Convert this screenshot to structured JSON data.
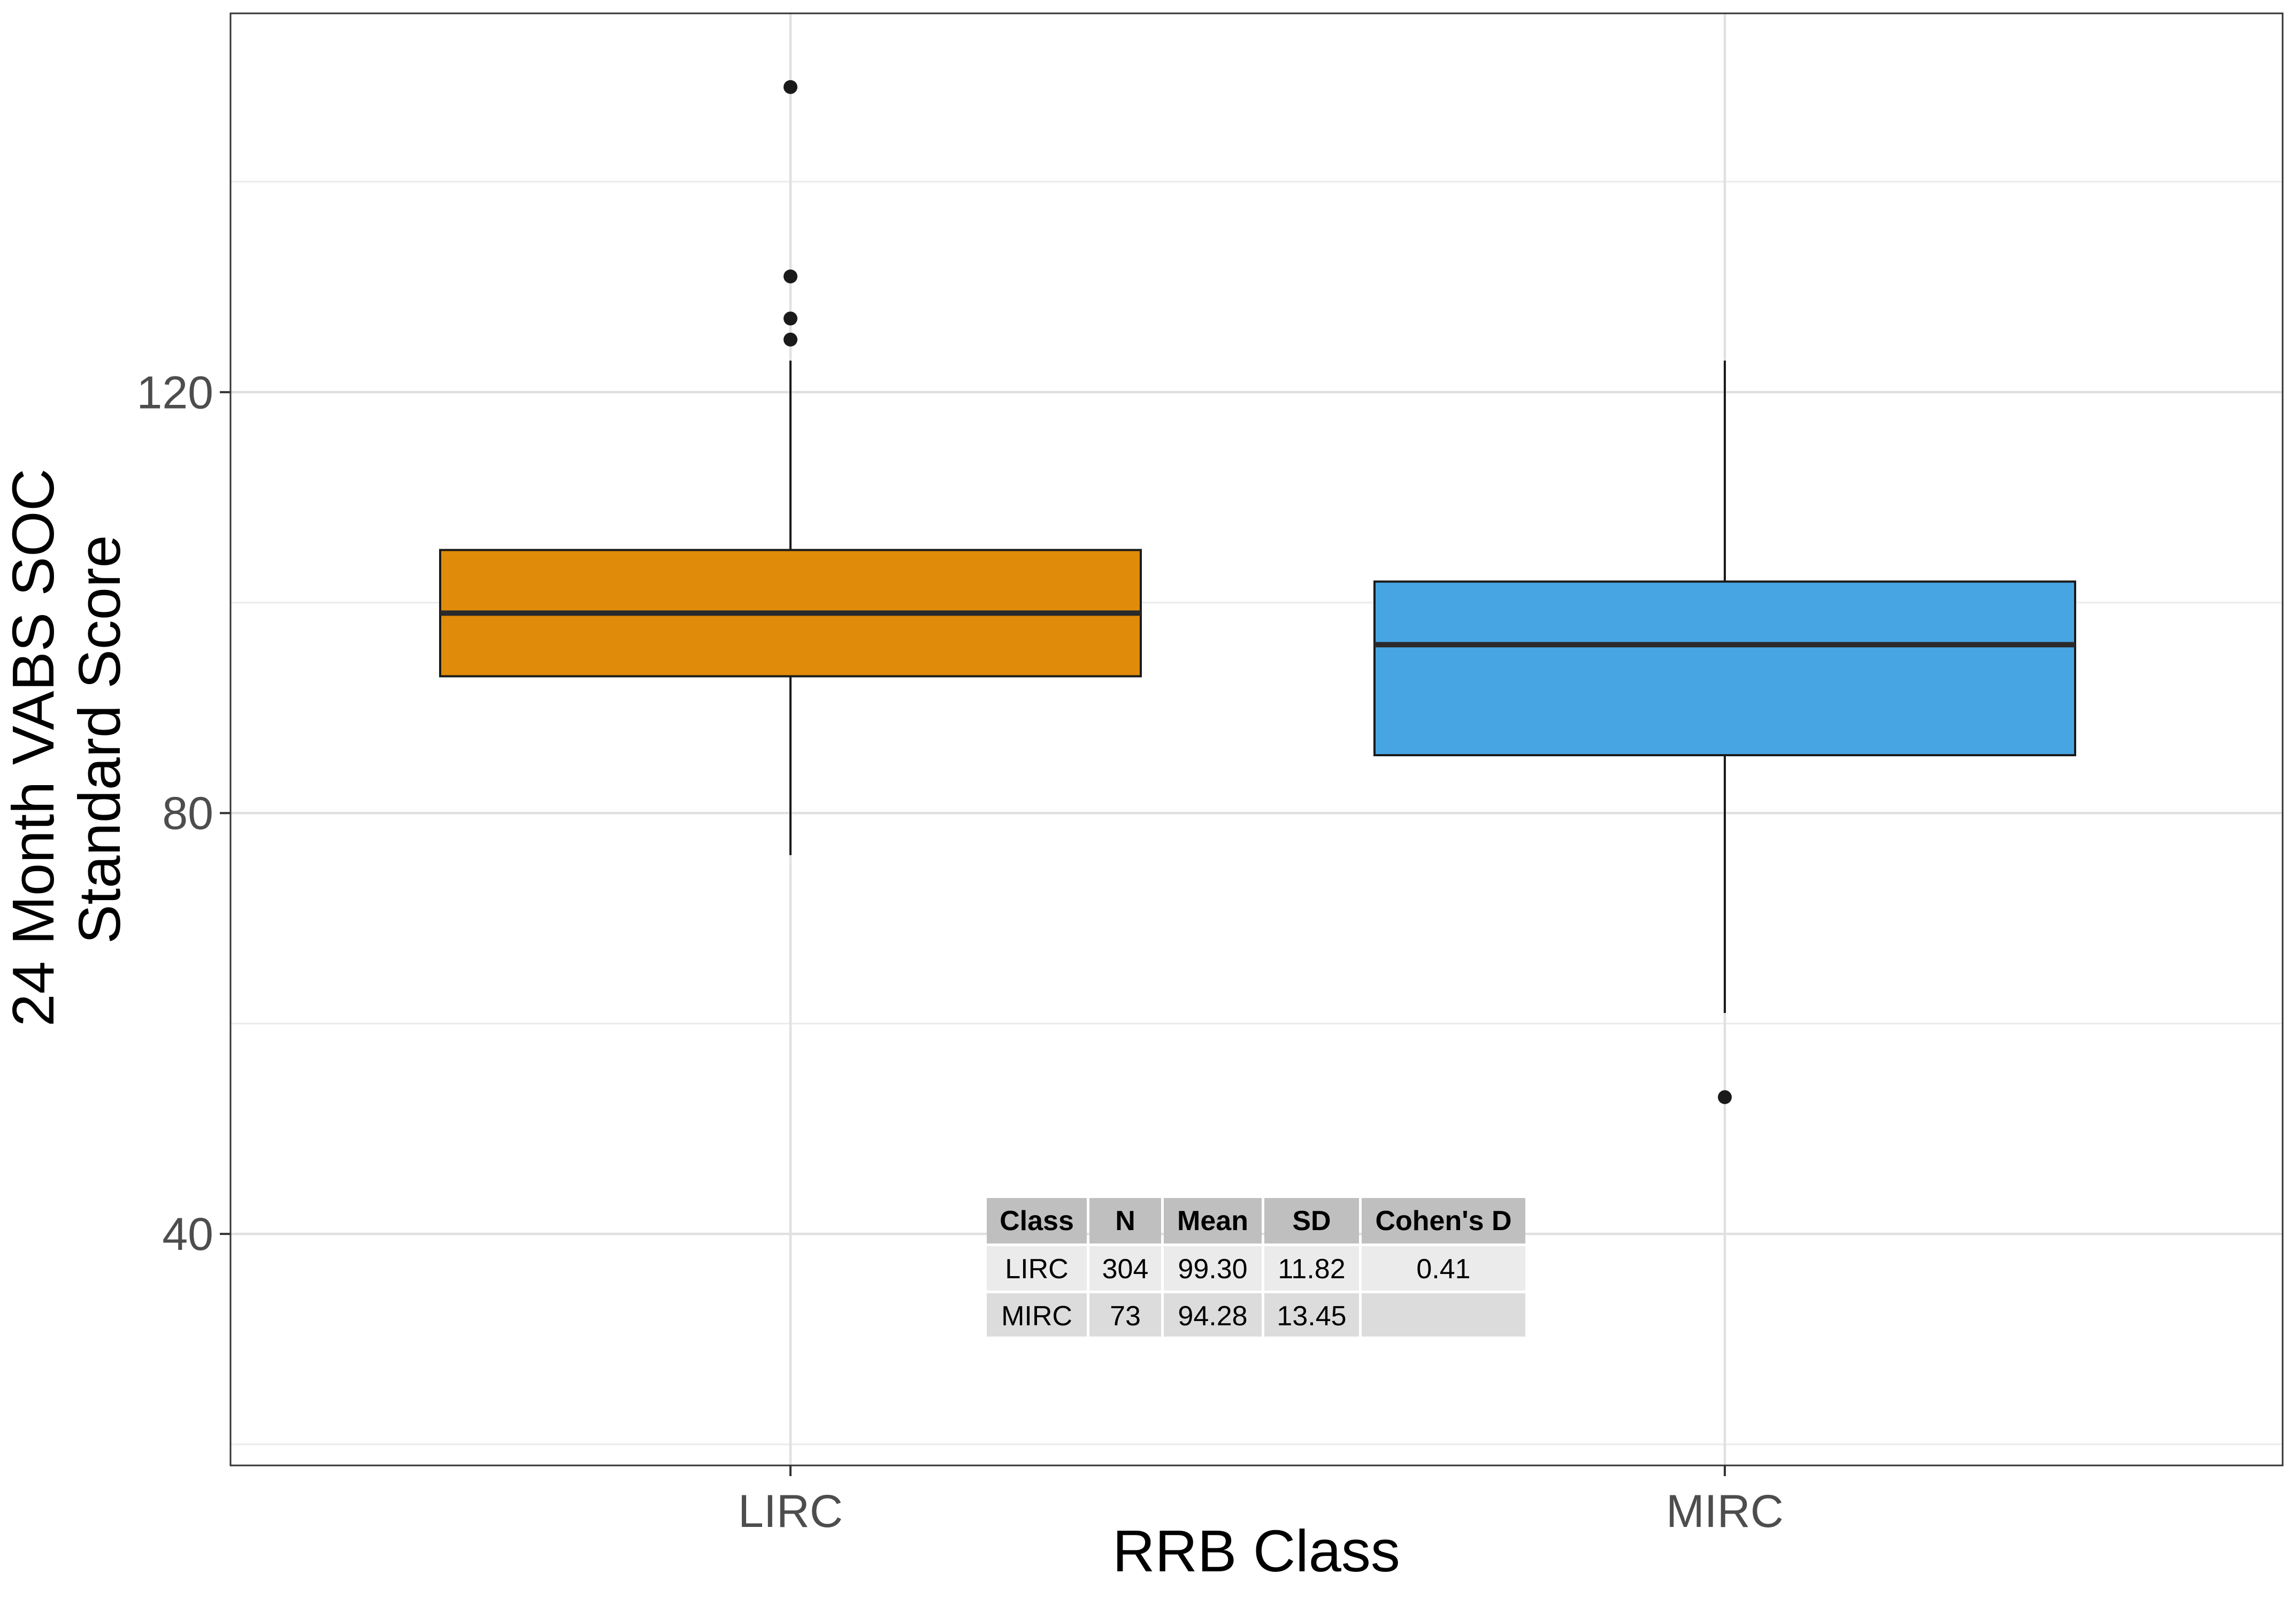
{
  "chart_data": {
    "type": "box",
    "xlabel": "RRB Class",
    "ylabel_lines": [
      "24 Month VABS SOC",
      "Standard Score"
    ],
    "ylim": [
      18,
      156
    ],
    "y_major_ticks": [
      40,
      80,
      120
    ],
    "y_minor_gridlines": [
      20,
      60,
      100,
      140
    ],
    "grid": true,
    "categories": [
      "LIRC",
      "MIRC"
    ],
    "series": [
      {
        "category": "LIRC",
        "color": "#E08B09",
        "whisker_low": 76,
        "q1": 93,
        "median": 99,
        "q3": 105,
        "whisker_high": 123,
        "outliers": [
          149,
          131,
          127,
          125
        ]
      },
      {
        "category": "MIRC",
        "color": "#47A5E3",
        "whisker_low": 61,
        "q1": 85.5,
        "median": 96,
        "q3": 102,
        "whisker_high": 123,
        "outliers": [
          53
        ]
      }
    ],
    "table": {
      "headers": [
        "Class",
        "N",
        "Mean",
        "SD",
        "Cohen's D"
      ],
      "rows": [
        [
          "LIRC",
          "304",
          "99.30",
          "11.82",
          "0.41"
        ],
        [
          "MIRC",
          "73",
          "94.28",
          "13.45",
          ""
        ]
      ],
      "header_color": "#BFBFBF",
      "row_colors": [
        "#EBEBEB",
        "#DCDCDC"
      ]
    }
  }
}
